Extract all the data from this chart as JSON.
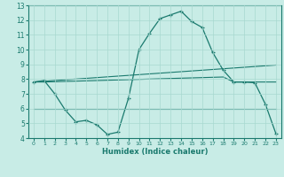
{
  "xlabel": "Humidex (Indice chaleur)",
  "bg_color": "#c8ece6",
  "line_color": "#1a7a6e",
  "grid_color": "#a8d8d0",
  "xlim": [
    -0.5,
    23.5
  ],
  "ylim": [
    4,
    13
  ],
  "xticks": [
    0,
    1,
    2,
    3,
    4,
    5,
    6,
    7,
    8,
    9,
    10,
    11,
    12,
    13,
    14,
    15,
    16,
    17,
    18,
    19,
    20,
    21,
    22,
    23
  ],
  "yticks": [
    4,
    5,
    6,
    7,
    8,
    9,
    10,
    11,
    12,
    13
  ],
  "line1_x": [
    0,
    1,
    2,
    3,
    4,
    5,
    6,
    7,
    8,
    9,
    10,
    11,
    12,
    13,
    14,
    15,
    16,
    17,
    18,
    19,
    20,
    21,
    22,
    23
  ],
  "line1_y": [
    7.8,
    7.9,
    7.0,
    5.9,
    5.1,
    5.2,
    4.9,
    4.25,
    4.4,
    6.7,
    10.0,
    11.1,
    12.1,
    12.35,
    12.6,
    11.9,
    11.5,
    9.8,
    8.6,
    7.8,
    7.8,
    7.75,
    6.3,
    4.3
  ],
  "line2_x": [
    0,
    1,
    2,
    3,
    4,
    5,
    6,
    7,
    8,
    9,
    10,
    11,
    12,
    13,
    14,
    15,
    16,
    17,
    18,
    19,
    20,
    21,
    22,
    23
  ],
  "line2_y": [
    7.8,
    7.85,
    7.9,
    7.95,
    8.0,
    8.05,
    8.1,
    8.15,
    8.2,
    8.25,
    8.3,
    8.35,
    8.4,
    8.45,
    8.5,
    8.55,
    8.6,
    8.65,
    8.7,
    8.75,
    8.8,
    8.85,
    8.9,
    8.95
  ],
  "line3_x": [
    0,
    1,
    2,
    3,
    4,
    5,
    6,
    7,
    8,
    9,
    10,
    11,
    12,
    13,
    14,
    15,
    16,
    17,
    18,
    19,
    20,
    21,
    22,
    23
  ],
  "line3_y": [
    7.8,
    7.8,
    7.82,
    7.84,
    7.86,
    7.88,
    7.9,
    7.92,
    7.94,
    7.96,
    7.98,
    8.0,
    8.02,
    8.04,
    8.06,
    8.08,
    8.1,
    8.12,
    8.14,
    7.8,
    7.8,
    7.8,
    7.8,
    7.8
  ],
  "line4_x": [
    0,
    23
  ],
  "line4_y": [
    6.0,
    6.0
  ]
}
